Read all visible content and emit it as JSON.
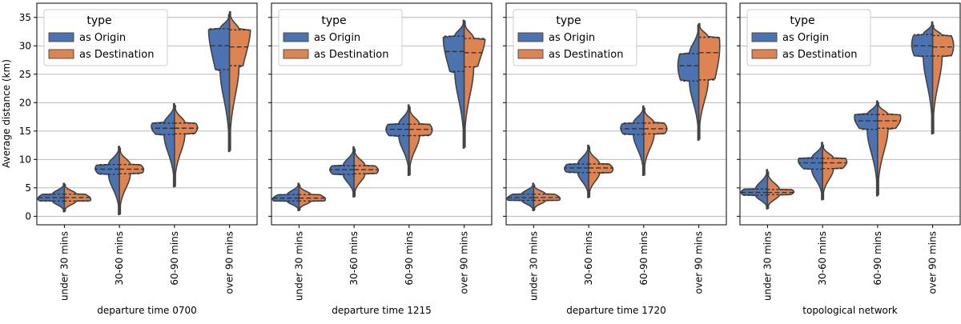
{
  "chart_data": {
    "type": "violin",
    "split": true,
    "ylabel": "Average distance (km)",
    "ylim": [
      -1.5,
      37.5
    ],
    "yticks": [
      0,
      5,
      10,
      15,
      20,
      25,
      30,
      35
    ],
    "categories": [
      "under 30 mins",
      "30-60 mins",
      "60-90 mins",
      "over 90 mins"
    ],
    "grid": "y",
    "legend": {
      "title": "type",
      "placement": "top-left",
      "entries": [
        {
          "name": "as Origin",
          "color": "#4c72b0"
        },
        {
          "name": "as Destination",
          "color": "#dd8452"
        }
      ]
    },
    "panels": [
      {
        "xlabel": "departure time 0700",
        "groups": [
          {
            "origin": {
              "min": 0.8,
              "max": 5.8,
              "q1": 2.7,
              "median": 3.3,
              "q3": 3.9,
              "mode": 3.1,
              "halfwidth": 0.48
            },
            "destination": {
              "min": 0.9,
              "max": 5.6,
              "q1": 2.7,
              "median": 3.3,
              "q3": 3.9,
              "mode": 3.0,
              "halfwidth": 0.48
            }
          },
          {
            "origin": {
              "min": 0.3,
              "max": 12.3,
              "q1": 7.4,
              "median": 8.3,
              "q3": 9.1,
              "mode": 8.4,
              "halfwidth": 0.44
            },
            "destination": {
              "min": 0.4,
              "max": 12.0,
              "q1": 7.5,
              "median": 8.3,
              "q3": 9.1,
              "mode": 8.2,
              "halfwidth": 0.44
            }
          },
          {
            "origin": {
              "min": 5.2,
              "max": 19.8,
              "q1": 14.4,
              "median": 15.5,
              "q3": 16.4,
              "mode": 15.8,
              "halfwidth": 0.42
            },
            "destination": {
              "min": 5.3,
              "max": 19.5,
              "q1": 14.5,
              "median": 15.5,
              "q3": 16.4,
              "mode": 15.6,
              "halfwidth": 0.42
            }
          },
          {
            "origin": {
              "min": 11.4,
              "max": 35.5,
              "q1": 25.8,
              "median": 30.0,
              "q3": 33.0,
              "mode": 33.0,
              "halfwidth": 0.38
            },
            "destination": {
              "min": 11.6,
              "max": 36.0,
              "q1": 26.5,
              "median": 29.8,
              "q3": 32.8,
              "mode": 33.3,
              "halfwidth": 0.38
            }
          }
        ]
      },
      {
        "xlabel": "departure time 1215",
        "groups": [
          {
            "origin": {
              "min": 1.0,
              "max": 5.8,
              "q1": 2.7,
              "median": 3.2,
              "q3": 3.8,
              "mode": 3.0,
              "halfwidth": 0.48
            },
            "destination": {
              "min": 1.1,
              "max": 5.5,
              "q1": 2.7,
              "median": 3.2,
              "q3": 3.8,
              "mode": 3.0,
              "halfwidth": 0.48
            }
          },
          {
            "origin": {
              "min": 3.4,
              "max": 12.2,
              "q1": 7.4,
              "median": 8.2,
              "q3": 8.9,
              "mode": 8.2,
              "halfwidth": 0.44
            },
            "destination": {
              "min": 3.5,
              "max": 11.8,
              "q1": 7.5,
              "median": 8.2,
              "q3": 8.9,
              "mode": 8.1,
              "halfwidth": 0.44
            }
          },
          {
            "origin": {
              "min": 7.2,
              "max": 19.6,
              "q1": 14.2,
              "median": 15.3,
              "q3": 16.2,
              "mode": 15.3,
              "halfwidth": 0.42
            },
            "destination": {
              "min": 7.3,
              "max": 19.2,
              "q1": 14.2,
              "median": 15.3,
              "q3": 16.2,
              "mode": 15.2,
              "halfwidth": 0.42
            }
          },
          {
            "origin": {
              "min": 12.0,
              "max": 34.5,
              "q1": 25.5,
              "median": 29.0,
              "q3": 31.7,
              "mode": 31.5,
              "halfwidth": 0.38
            },
            "destination": {
              "min": 12.2,
              "max": 34.3,
              "q1": 26.3,
              "median": 28.8,
              "q3": 31.3,
              "mode": 31.8,
              "halfwidth": 0.38
            }
          }
        ]
      },
      {
        "xlabel": "departure time 1720",
        "groups": [
          {
            "origin": {
              "min": 1.0,
              "max": 5.8,
              "q1": 2.8,
              "median": 3.3,
              "q3": 3.9,
              "mode": 3.1,
              "halfwidth": 0.48
            },
            "destination": {
              "min": 1.1,
              "max": 5.5,
              "q1": 2.8,
              "median": 3.3,
              "q3": 3.9,
              "mode": 3.1,
              "halfwidth": 0.48
            }
          },
          {
            "origin": {
              "min": 3.3,
              "max": 12.5,
              "q1": 7.7,
              "median": 8.5,
              "q3": 9.2,
              "mode": 8.4,
              "halfwidth": 0.44
            },
            "destination": {
              "min": 3.4,
              "max": 12.2,
              "q1": 7.7,
              "median": 8.5,
              "q3": 9.2,
              "mode": 8.3,
              "halfwidth": 0.44
            }
          },
          {
            "origin": {
              "min": 7.2,
              "max": 19.4,
              "q1": 14.4,
              "median": 15.4,
              "q3": 16.4,
              "mode": 15.5,
              "halfwidth": 0.42
            },
            "destination": {
              "min": 7.3,
              "max": 19.0,
              "q1": 14.5,
              "median": 15.4,
              "q3": 16.4,
              "mode": 15.4,
              "halfwidth": 0.42
            }
          },
          {
            "origin": {
              "min": 13.4,
              "max": 33.7,
              "q1": 23.8,
              "median": 26.5,
              "q3": 28.6,
              "mode": 26.5,
              "halfwidth": 0.38
            },
            "destination": {
              "min": 13.6,
              "max": 33.9,
              "q1": 24.0,
              "median": 28.8,
              "q3": 31.5,
              "mode": 30.0,
              "halfwidth": 0.38
            }
          }
        ]
      },
      {
        "xlabel": "topological network",
        "groups": [
          {
            "origin": {
              "min": 1.3,
              "max": 8.2,
              "q1": 3.7,
              "median": 4.2,
              "q3": 4.8,
              "mode": 4.2,
              "halfwidth": 0.48
            },
            "destination": {
              "min": 1.4,
              "max": 7.8,
              "q1": 3.8,
              "median": 4.2,
              "q3": 4.7,
              "mode": 4.3,
              "halfwidth": 0.48
            }
          },
          {
            "origin": {
              "min": 2.9,
              "max": 13.0,
              "q1": 8.3,
              "median": 9.4,
              "q3": 10.2,
              "mode": 9.8,
              "halfwidth": 0.44
            },
            "destination": {
              "min": 3.0,
              "max": 12.5,
              "q1": 8.4,
              "median": 9.4,
              "q3": 10.2,
              "mode": 9.6,
              "halfwidth": 0.44
            }
          },
          {
            "origin": {
              "min": 3.6,
              "max": 20.3,
              "q1": 15.3,
              "median": 16.8,
              "q3": 17.9,
              "mode": 17.4,
              "halfwidth": 0.42
            },
            "destination": {
              "min": 3.8,
              "max": 20.0,
              "q1": 15.5,
              "median": 16.8,
              "q3": 17.9,
              "mode": 17.3,
              "halfwidth": 0.42
            }
          },
          {
            "origin": {
              "min": 14.5,
              "max": 34.2,
              "q1": 28.2,
              "median": 30.0,
              "q3": 32.0,
              "mode": 30.2,
              "halfwidth": 0.38
            },
            "destination": {
              "min": 14.6,
              "max": 33.6,
              "q1": 28.2,
              "median": 29.8,
              "q3": 31.8,
              "mode": 30.0,
              "halfwidth": 0.38
            }
          }
        ]
      }
    ]
  }
}
